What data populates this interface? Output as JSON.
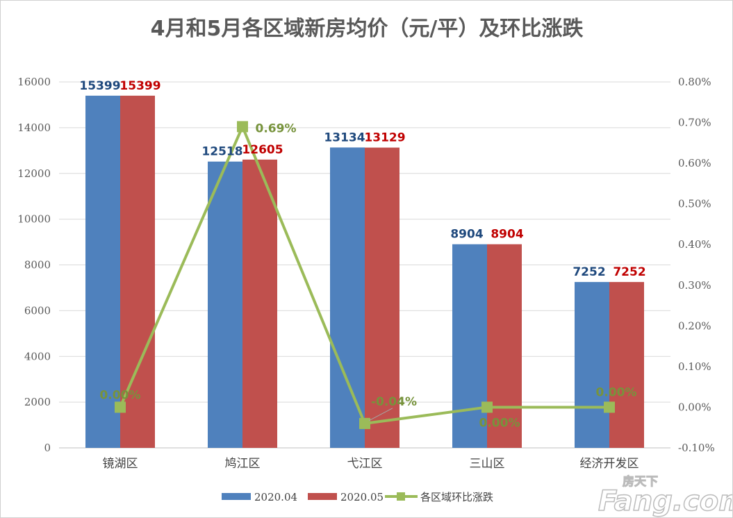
{
  "chart_data": {
    "type": "bar+line",
    "title": "4月和5月各区域新房均价（元/平）及环比涨跌",
    "categories": [
      "镜湖区",
      "鸠江区",
      "弋江区",
      "三山区",
      "经济开发区"
    ],
    "series": [
      {
        "name": "2020.04",
        "type": "bar",
        "axis": "left",
        "color": "#4f81bd",
        "label_color": "#1f497d",
        "values": [
          15399,
          12518,
          13134,
          8904,
          7252
        ]
      },
      {
        "name": "2020.05",
        "type": "bar",
        "axis": "left",
        "color": "#c0504d",
        "label_color": "#c00000",
        "values": [
          15399,
          12605,
          13129,
          8904,
          7252
        ]
      },
      {
        "name": "各区域环比涨跌",
        "type": "line",
        "axis": "right",
        "color": "#9bbb59",
        "label_color": "#77933c",
        "values": [
          0.0,
          0.69,
          -0.04,
          0.0,
          0.0
        ],
        "labels": [
          "0.00%",
          "0.69%",
          "-0.04%",
          "0.00%",
          "0.00%"
        ]
      }
    ],
    "ylim_left": [
      0,
      16000
    ],
    "left_ticks": [
      "0",
      "2000",
      "4000",
      "6000",
      "8000",
      "10000",
      "12000",
      "14000",
      "16000"
    ],
    "ylim_right": [
      -0.1,
      0.8
    ],
    "right_ticks": [
      "-0.10%",
      "0.00%",
      "0.10%",
      "0.20%",
      "0.30%",
      "0.40%",
      "0.50%",
      "0.60%",
      "0.70%",
      "0.80%"
    ],
    "grid": true,
    "legend": "bottom"
  },
  "watermark": {
    "logo": "Fang.com",
    "sub": "房天下"
  }
}
